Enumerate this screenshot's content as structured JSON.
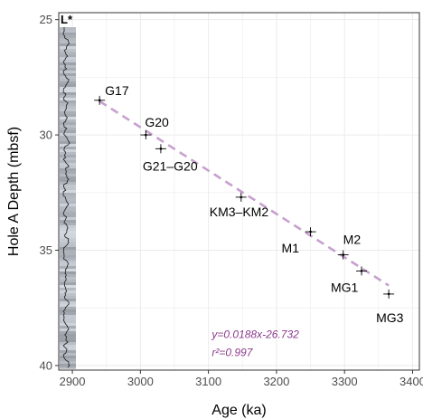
{
  "chart_data": {
    "type": "scatter",
    "xlabel": "Age (ka)",
    "ylabel": "Hole A Depth (mbsf)",
    "xlim": [
      2880,
      3410
    ],
    "ylim": [
      40.2,
      24.7
    ],
    "y_reversed": true,
    "x_ticks": [
      2900,
      3000,
      3100,
      3200,
      3300,
      3400
    ],
    "y_ticks": [
      25,
      30,
      35,
      40
    ],
    "grid": true,
    "core_strip_label": "L*",
    "points": [
      {
        "label": "G17",
        "x": 2940,
        "y": 28.5
      },
      {
        "label": "G20",
        "x": 3008,
        "y": 30.0
      },
      {
        "label": "G21–G20",
        "x": 3030,
        "y": 30.6
      },
      {
        "label": "KM3–KM2",
        "x": 3148,
        "y": 32.7
      },
      {
        "label": "M1",
        "x": 3250,
        "y": 34.2
      },
      {
        "label": "M2",
        "x": 3298,
        "y": 35.2
      },
      {
        "label": "MG1",
        "x": 3325,
        "y": 35.9
      },
      {
        "label": "MG3",
        "x": 3365,
        "y": 36.9
      }
    ],
    "regression": {
      "slope": 0.0188,
      "intercept": -26.732,
      "x_range": [
        2940,
        3365
      ],
      "equation": "y=0.0188x-26.732",
      "r2_label": "r²=0.997"
    },
    "colors": {
      "regression": "#c7a0cf",
      "equation_text": "#8b3a8b",
      "grid": "#ebebeb"
    }
  }
}
